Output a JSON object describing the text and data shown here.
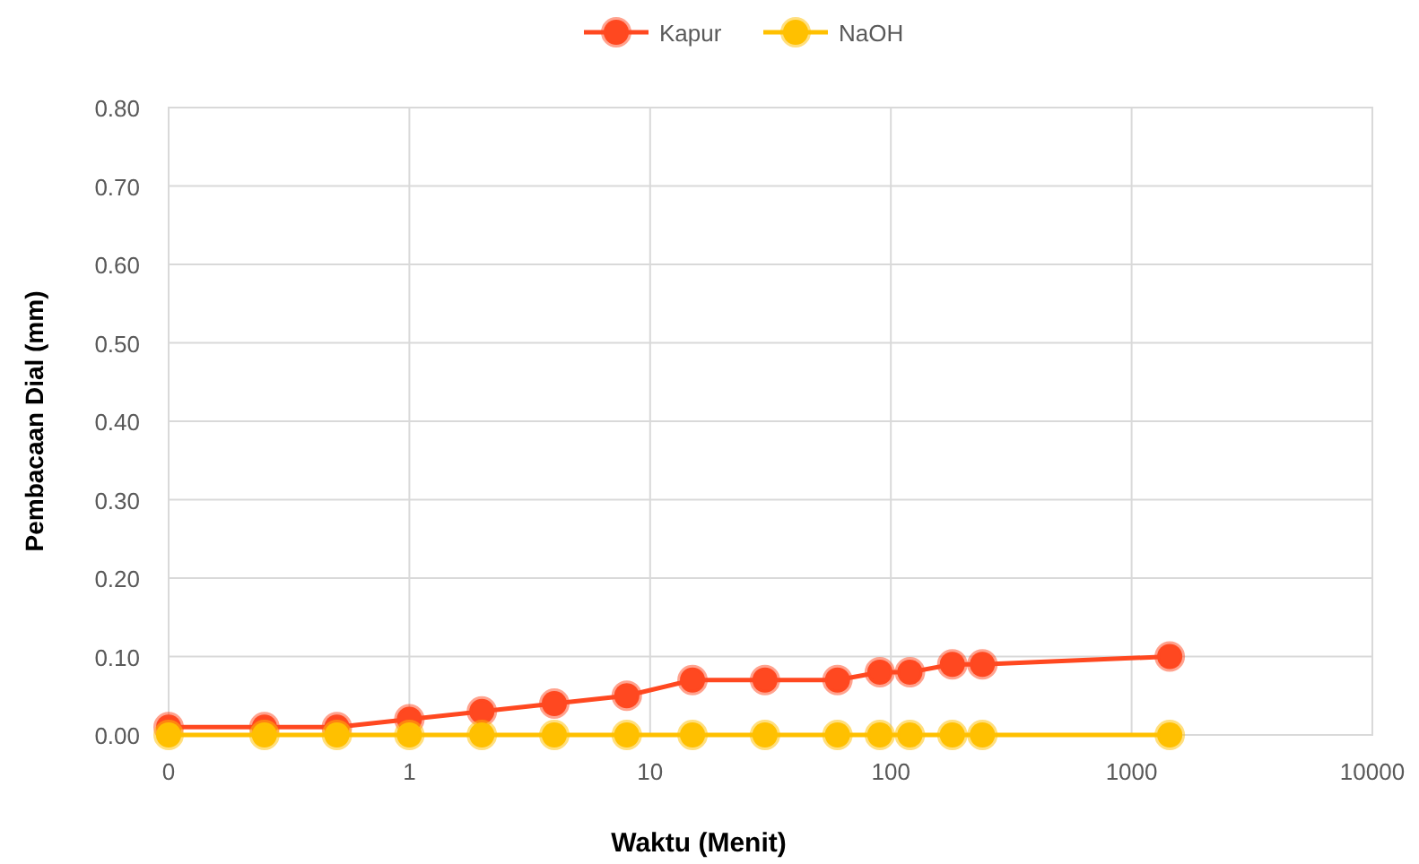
{
  "chart_data": {
    "type": "line",
    "xlabel": "Waktu (Menit)",
    "ylabel": "Pembacaan Dial (mm)",
    "log": "x",
    "xlim": [
      0.1,
      10000
    ],
    "xticks": [
      {
        "value": 0.1,
        "label": "0"
      },
      1,
      10,
      100,
      1000,
      10000
    ],
    "ylim": [
      0,
      0.8
    ],
    "yticks": [
      {
        "value": 0,
        "label": "0.00"
      },
      {
        "value": 0.1,
        "label": "0.10"
      },
      {
        "value": 0.2,
        "label": "0.20"
      },
      {
        "value": 0.3,
        "label": "0.30"
      },
      {
        "value": 0.4,
        "label": "0.40"
      },
      {
        "value": 0.5,
        "label": "0.50"
      },
      {
        "value": 0.6,
        "label": "0.60"
      },
      {
        "value": 0.7,
        "label": "0.70"
      },
      {
        "value": 0.8,
        "label": "0.80"
      }
    ],
    "grid": true,
    "legend": "top",
    "marker": "circle",
    "line_style": "solid",
    "x": [
      0.1,
      0.25,
      0.5,
      1,
      2,
      4,
      8,
      15,
      30,
      60,
      90,
      120,
      180,
      240,
      1440
    ],
    "series": [
      {
        "name": "Kapur",
        "color": "#ff4820",
        "values": [
          0.01,
          0.01,
          0.01,
          0.02,
          0.03,
          0.04,
          0.05,
          0.07,
          0.07,
          0.07,
          0.08,
          0.08,
          0.09,
          0.09,
          0.1
        ]
      },
      {
        "name": "NaOH",
        "color": "#ffc000",
        "values": [
          0,
          0,
          0,
          0,
          0,
          0,
          0,
          0,
          0,
          0,
          0,
          0,
          0,
          0,
          0
        ]
      }
    ]
  }
}
